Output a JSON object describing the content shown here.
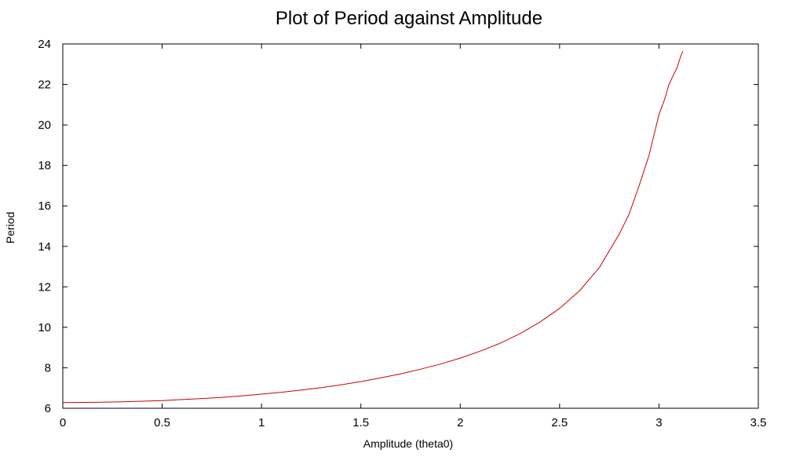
{
  "chart_data": {
    "type": "line",
    "title": "Plot of Period against Amplitude",
    "xlabel": "Amplitude (theta0)",
    "ylabel": "Period",
    "xlim": [
      0,
      3.5
    ],
    "ylim": [
      6,
      24
    ],
    "x_ticks": [
      "0",
      "0.5",
      "1",
      "1.5",
      "2",
      "2.5",
      "3",
      "3.5"
    ],
    "y_ticks": [
      "6",
      "8",
      "10",
      "12",
      "14",
      "16",
      "18",
      "20",
      "22",
      "24"
    ],
    "grid": false,
    "legend": "none",
    "series": [
      {
        "color": "#cc0000",
        "x": [
          0,
          0.1,
          0.2,
          0.3,
          0.4,
          0.5,
          0.6,
          0.7,
          0.8,
          0.9,
          1.0,
          1.1,
          1.2,
          1.3,
          1.4,
          1.5,
          1.6,
          1.7,
          1.8,
          1.9,
          2.0,
          2.1,
          2.2,
          2.3,
          2.4,
          2.5,
          2.6,
          2.7,
          2.8,
          2.85,
          2.9,
          2.95,
          3.0,
          3.03,
          3.05,
          3.07,
          3.09,
          3.1,
          3.11,
          3.12
        ],
        "y": [
          6.28,
          6.29,
          6.3,
          6.32,
          6.35,
          6.38,
          6.43,
          6.48,
          6.54,
          6.61,
          6.7,
          6.79,
          6.9,
          7.02,
          7.16,
          7.32,
          7.5,
          7.7,
          7.93,
          8.18,
          8.48,
          8.82,
          9.21,
          9.68,
          10.25,
          10.94,
          11.8,
          12.95,
          14.6,
          15.6,
          16.99,
          18.5,
          20.5,
          21.3,
          22.0,
          22.4,
          22.8,
          23.1,
          23.4,
          23.65
        ]
      }
    ]
  }
}
